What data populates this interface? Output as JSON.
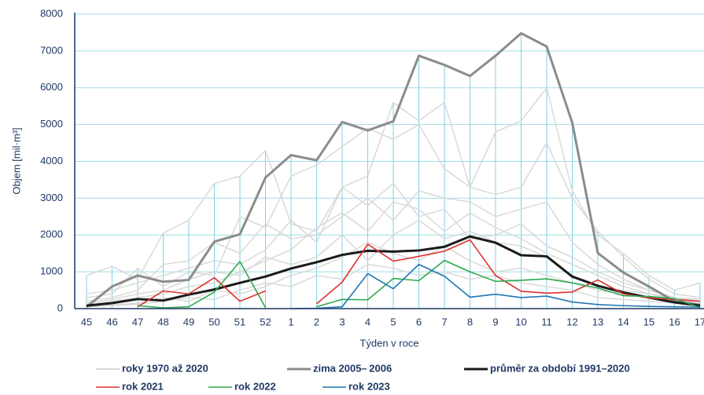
{
  "chart_data": {
    "type": "line",
    "y_label": "Objem   [mil·m³]",
    "x_label": "Týden v roce",
    "categories": [
      "45",
      "46",
      "47",
      "48",
      "49",
      "50",
      "51",
      "52",
      "1",
      "2",
      "3",
      "4",
      "5",
      "6",
      "7",
      "8",
      "9",
      "10",
      "11",
      "12",
      "13",
      "14",
      "15",
      "16",
      "17"
    ],
    "ylim": [
      0,
      8000
    ],
    "yticks": [
      0,
      1000,
      2000,
      3000,
      4000,
      5000,
      6000,
      7000,
      8000
    ],
    "grid": true,
    "background_series": {
      "name": "roky 1970 až 2020",
      "color": "#d9d9d9",
      "lines": [
        [
          900,
          1150,
          800,
          2050,
          2400,
          3400,
          3600,
          4300,
          2300,
          2100,
          3300,
          3600,
          5600,
          5100,
          5600,
          3300,
          4800,
          5100,
          6000,
          3200,
          2000,
          1500,
          900,
          500,
          700
        ],
        [
          300,
          400,
          1100,
          600,
          1000,
          900,
          2500,
          2200,
          3600,
          3900,
          4400,
          4900,
          4600,
          5000,
          3800,
          3300,
          3100,
          3300,
          4500,
          3000,
          2100,
          1400,
          800,
          400,
          300
        ],
        [
          200,
          300,
          500,
          1200,
          1300,
          1800,
          1500,
          2300,
          1900,
          2000,
          2500,
          3000,
          2400,
          3200,
          3000,
          2900,
          2500,
          2700,
          2900,
          1800,
          1200,
          800,
          500,
          300,
          200
        ],
        [
          100,
          200,
          300,
          400,
          600,
          700,
          1000,
          1300,
          1600,
          2200,
          2600,
          2100,
          2900,
          2700,
          2100,
          2600,
          2200,
          1900,
          1500,
          1200,
          900,
          600,
          400,
          250,
          150
        ],
        [
          50,
          100,
          150,
          300,
          200,
          500,
          400,
          600,
          900,
          1100,
          1400,
          1800,
          1500,
          1300,
          1700,
          1300,
          1000,
          1100,
          900,
          700,
          500,
          400,
          300,
          200,
          100
        ],
        [
          400,
          500,
          700,
          900,
          1100,
          1300,
          1200,
          1600,
          2400,
          1800,
          3300,
          2800,
          3400,
          2500,
          2700,
          1900,
          2000,
          2300,
          1700,
          1400,
          1000,
          700,
          500,
          300,
          200
        ],
        [
          150,
          250,
          400,
          500,
          800,
          1000,
          900,
          1400,
          1200,
          1400,
          2000,
          1300,
          2000,
          2400,
          1900,
          2100,
          1800,
          1700,
          1400,
          900,
          600,
          500,
          400,
          300,
          250
        ],
        [
          50,
          80,
          120,
          200,
          300,
          250,
          500,
          700,
          600,
          900,
          800,
          1200,
          1100,
          900,
          1000,
          800,
          900,
          700,
          600,
          500,
          300,
          250,
          200,
          150,
          100
        ]
      ]
    },
    "series": [
      {
        "name": "zima 2005– 2006",
        "color": "#8c8c8c",
        "width": 3,
        "values": [
          50,
          600,
          900,
          730,
          780,
          1820,
          2020,
          3560,
          4170,
          4030,
          5070,
          4840,
          5090,
          6870,
          6620,
          6320,
          6870,
          7480,
          7120,
          5050,
          1510,
          980,
          600,
          200,
          100
        ]
      },
      {
        "name": "průměr za období 1991–2020",
        "color": "#1a1a1a",
        "width": 3,
        "values": [
          80,
          150,
          260,
          220,
          380,
          520,
          700,
          870,
          1090,
          1260,
          1460,
          1570,
          1550,
          1580,
          1680,
          1960,
          1790,
          1450,
          1420,
          870,
          620,
          440,
          300,
          170,
          80
        ]
      },
      {
        "name": "rok 2021",
        "color": "#e03030",
        "width": 1.6,
        "values": [
          null,
          null,
          50,
          480,
          400,
          840,
          200,
          480,
          null,
          130,
          720,
          1750,
          1290,
          1420,
          1560,
          1870,
          900,
          470,
          420,
          450,
          780,
          400,
          290,
          250,
          200
        ]
      },
      {
        "name": "rok 2022",
        "color": "#2ea84f",
        "width": 1.6,
        "values": [
          null,
          null,
          80,
          20,
          50,
          450,
          1280,
          30,
          null,
          50,
          250,
          240,
          820,
          760,
          1310,
          1000,
          740,
          770,
          810,
          700,
          560,
          350,
          330,
          270,
          30
        ]
      },
      {
        "name": "rok 2023",
        "color": "#1f77b4",
        "width": 1.6,
        "values": [
          null,
          null,
          null,
          null,
          null,
          null,
          null,
          null,
          0,
          10,
          50,
          950,
          540,
          1200,
          880,
          310,
          390,
          300,
          340,
          180,
          110,
          80,
          60,
          50,
          40
        ]
      }
    ]
  }
}
